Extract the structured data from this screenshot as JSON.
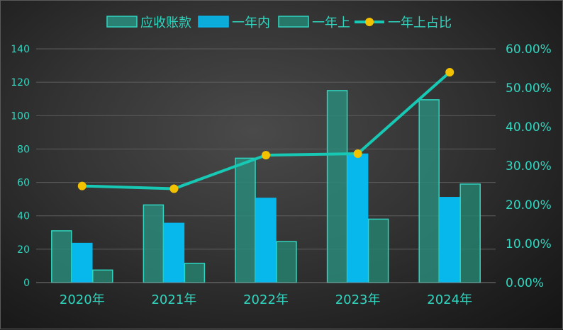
{
  "chart_data": {
    "type": "bar",
    "categories": [
      "2020年",
      "2021年",
      "2022年",
      "2023年",
      "2024年"
    ],
    "series": [
      {
        "name": "应收账款",
        "kind": "bar",
        "axis": "left",
        "values": [
          31,
          46.5,
          74.5,
          115,
          109.5
        ]
      },
      {
        "name": "一年内",
        "kind": "bar",
        "axis": "left",
        "values": [
          23.5,
          35.5,
          50.5,
          77,
          51
        ]
      },
      {
        "name": "一年上",
        "kind": "bar",
        "axis": "left",
        "values": [
          7.5,
          11.5,
          24.5,
          38,
          59
        ]
      },
      {
        "name": "一年上占比",
        "kind": "line",
        "axis": "right",
        "values": [
          24.8,
          24.1,
          32.7,
          33.1,
          54.0
        ]
      }
    ],
    "y_left": {
      "min": 0,
      "max": 140,
      "ticks": [
        "0",
        "20",
        "40",
        "60",
        "80",
        "100",
        "120",
        "140"
      ]
    },
    "y_right": {
      "min": 0,
      "max": 60,
      "ticks": [
        "0.00%",
        "10.00%",
        "20.00%",
        "30.00%",
        "40.00%",
        "50.00%",
        "60.00%"
      ]
    },
    "grid": true,
    "legend_position": "top-center",
    "colors": {
      "accounts_receivable": "#2a8a7a",
      "within_one_year": "#07b8ec",
      "over_one_year": "#26806f",
      "ratio_line": "#17c9b4",
      "ratio_marker": "#f2c200",
      "bar_border": "#2fd6c0",
      "text": "#2fd6c0",
      "gridline": "#5c5c5c"
    }
  }
}
